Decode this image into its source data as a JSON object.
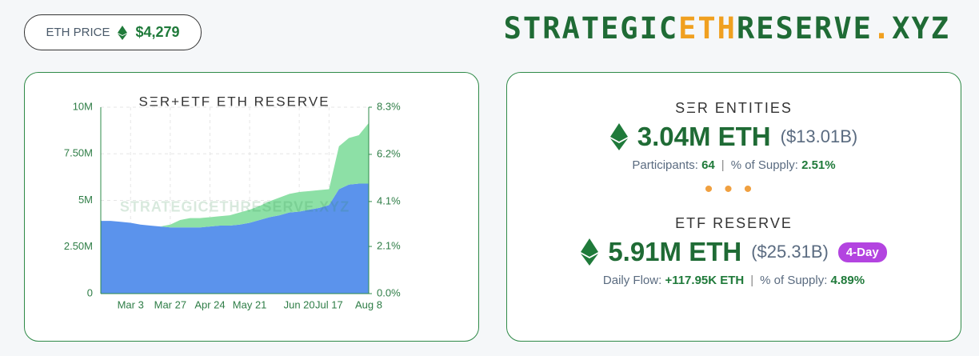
{
  "header": {
    "price_label": "ETH PRICE",
    "price_value": "$4,279",
    "logo": [
      "STRATEGIC",
      "ETH",
      "RESERVE",
      ".",
      "XYZ"
    ]
  },
  "chart_data": {
    "type": "stacked-area",
    "title": "SΞR+ETF ETH RESERVE",
    "watermark": "STRATEGICETHRESERVE.XYZ",
    "categories": [
      null,
      null,
      null,
      "Mar 3",
      null,
      null,
      null,
      "Mar 27",
      null,
      null,
      null,
      "Apr 24",
      null,
      null,
      null,
      "May 21",
      null,
      null,
      null,
      null,
      "Jun 20",
      null,
      null,
      "Jul 17",
      null,
      null,
      null,
      "Aug 8"
    ],
    "series": [
      {
        "name": "ETF",
        "color": "#5b93ec",
        "values": [
          3900000,
          3900000,
          3850000,
          3800000,
          3700000,
          3650000,
          3600000,
          3550000,
          3550000,
          3550000,
          3550000,
          3600000,
          3650000,
          3650000,
          3700000,
          3800000,
          3950000,
          4100000,
          4200000,
          4350000,
          4400000,
          4500000,
          4600000,
          4750000,
          5600000,
          5850000,
          5900000,
          5900000
        ]
      },
      {
        "name": "SΞR",
        "color": "#8de0a6",
        "values": [
          0,
          0,
          0,
          0,
          0,
          0,
          0,
          150000,
          400000,
          500000,
          500000,
          500000,
          500000,
          550000,
          650000,
          700000,
          750000,
          850000,
          950000,
          1000000,
          1050000,
          1000000,
          950000,
          850000,
          2300000,
          2500000,
          2600000,
          3250000
        ]
      }
    ],
    "ylim": [
      0,
      10000000
    ],
    "yticks": [
      0,
      {
        "value": 2500000,
        "label": "2.50M"
      },
      {
        "value": 5000000,
        "label": "5M"
      },
      {
        "value": 7500000,
        "label": "7.50M"
      },
      {
        "value": 10000000,
        "label": "10M"
      }
    ],
    "y2lim": [
      0,
      8.3
    ],
    "y2ticks": [
      {
        "value": 0,
        "label": "0.0%"
      },
      {
        "value": 2.1,
        "label": "2.1%"
      },
      {
        "value": 4.1,
        "label": "4.1%"
      },
      {
        "value": 6.2,
        "label": "6.2%"
      },
      {
        "value": 8.3,
        "label": "8.3%"
      }
    ],
    "grid": true
  },
  "ser": {
    "title": "SΞR ENTITIES",
    "amount": "3.04M ETH",
    "usd": "($13.01B)",
    "k1": "Participants:",
    "v1": "64",
    "k2": "% of Supply:",
    "v2": "2.51%"
  },
  "etf": {
    "title": "ETF RESERVE",
    "amount": "5.91M ETH",
    "usd": "($25.31B)",
    "badge": "4-Day",
    "k1": "Daily Flow:",
    "v1": "+117.95K ETH",
    "k2": "% of Supply:",
    "v2": "4.89%"
  }
}
